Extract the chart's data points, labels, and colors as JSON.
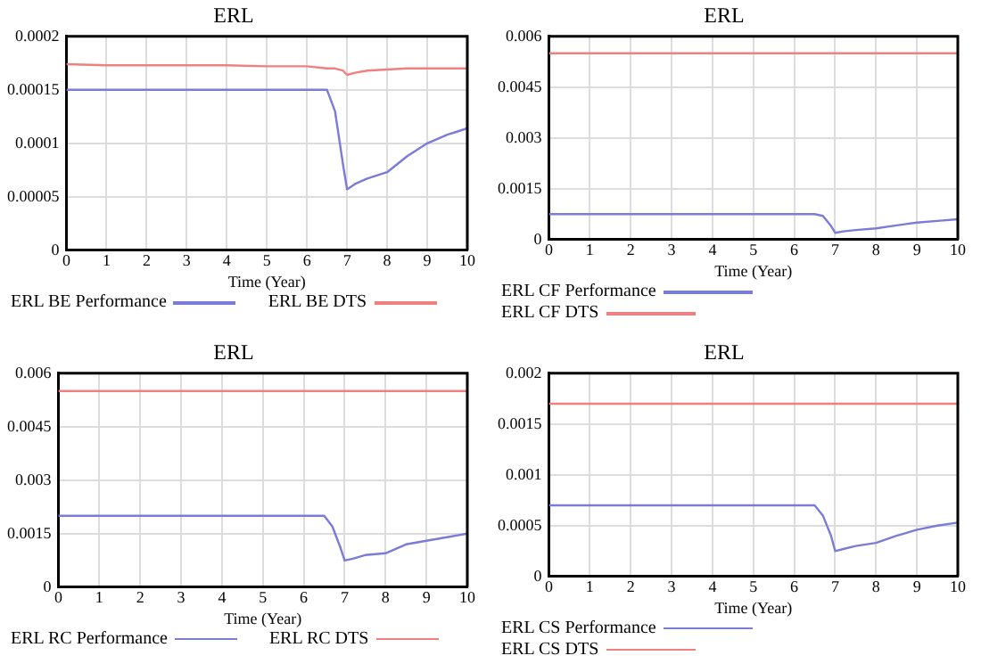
{
  "chart_data": [
    {
      "type": "line",
      "title": "ERL",
      "xlabel": "Time (Year)",
      "x": [
        0,
        1,
        2,
        3,
        4,
        5,
        6,
        6.5,
        6.7,
        6.9,
        7,
        7.2,
        7.5,
        8,
        8.5,
        9,
        9.5,
        10
      ],
      "xlim": [
        0,
        10
      ],
      "xticks": [
        0,
        1,
        2,
        3,
        4,
        5,
        6,
        7,
        8,
        9,
        10
      ],
      "ylim": [
        0,
        0.0002
      ],
      "yticks": [
        0,
        {
          "value": 5e-05,
          "label": "0.00005"
        },
        0.0001,
        0.00015,
        0.0002
      ],
      "grid": true,
      "legend": "bottom",
      "series": [
        {
          "name": "ERL BE Performance",
          "color": "#7b7bd8",
          "values": [
            0.00015,
            0.00015,
            0.00015,
            0.00015,
            0.00015,
            0.00015,
            0.00015,
            0.00015,
            0.00013,
            8e-05,
            5.7e-05,
            6.2e-05,
            6.7e-05,
            7.3e-05,
            8.8e-05,
            0.0001,
            0.000108,
            0.000114
          ]
        },
        {
          "name": "ERL BE DTS",
          "color": "#f08080",
          "values": [
            0.000174,
            0.000173,
            0.000173,
            0.000173,
            0.000173,
            0.000172,
            0.000172,
            0.00017,
            0.00017,
            0.000168,
            0.000164,
            0.000166,
            0.000168,
            0.000169,
            0.00017,
            0.00017,
            0.00017,
            0.00017
          ]
        }
      ]
    },
    {
      "type": "line",
      "title": "ERL",
      "xlabel": "Time (Year)",
      "x": [
        0,
        1,
        2,
        3,
        4,
        5,
        6,
        6.5,
        6.7,
        6.9,
        7,
        7.2,
        7.5,
        8,
        8.5,
        9,
        9.5,
        10
      ],
      "xlim": [
        0,
        10
      ],
      "xticks": [
        0,
        1,
        2,
        3,
        4,
        5,
        6,
        7,
        8,
        9,
        10
      ],
      "ylim": [
        0,
        0.006
      ],
      "yticks": [
        0,
        0.0015,
        0.003,
        0.0045,
        0.006
      ],
      "grid": true,
      "legend": "bottom",
      "series": [
        {
          "name": "ERL CF Performance",
          "color": "#7b7bd8",
          "values": [
            0.00075,
            0.00075,
            0.00075,
            0.00075,
            0.00075,
            0.00075,
            0.00075,
            0.00075,
            0.0007,
            0.0004,
            0.0002,
            0.00024,
            0.00028,
            0.00033,
            0.00042,
            0.0005,
            0.00055,
            0.0006
          ]
        },
        {
          "name": "ERL CF DTS",
          "color": "#f08080",
          "values": [
            0.0055,
            0.0055,
            0.0055,
            0.0055,
            0.0055,
            0.0055,
            0.0055,
            0.0055,
            0.0055,
            0.0055,
            0.0055,
            0.0055,
            0.0055,
            0.0055,
            0.0055,
            0.0055,
            0.0055,
            0.0055
          ]
        }
      ]
    },
    {
      "type": "line",
      "title": "ERL",
      "xlabel": "Time (Year)",
      "x": [
        0,
        1,
        2,
        3,
        4,
        5,
        6,
        6.5,
        6.7,
        6.9,
        7,
        7.2,
        7.5,
        8,
        8.5,
        9,
        9.5,
        10
      ],
      "xlim": [
        0,
        10
      ],
      "xticks": [
        0,
        1,
        2,
        3,
        4,
        5,
        6,
        7,
        8,
        9,
        10
      ],
      "ylim": [
        0,
        0.006
      ],
      "yticks": [
        0,
        0.0015,
        0.003,
        0.0045,
        0.006
      ],
      "grid": true,
      "legend": "bottom",
      "series": [
        {
          "name": "ERL RC Performance",
          "color": "#7b7bd8",
          "values": [
            0.002,
            0.002,
            0.002,
            0.002,
            0.002,
            0.002,
            0.002,
            0.002,
            0.0017,
            0.0011,
            0.00075,
            0.0008,
            0.0009,
            0.00095,
            0.0012,
            0.0013,
            0.0014,
            0.0015
          ]
        },
        {
          "name": "ERL RC DTS",
          "color": "#f08080",
          "values": [
            0.0055,
            0.0055,
            0.0055,
            0.0055,
            0.0055,
            0.0055,
            0.0055,
            0.0055,
            0.0055,
            0.0055,
            0.0055,
            0.0055,
            0.0055,
            0.0055,
            0.0055,
            0.0055,
            0.0055,
            0.0055
          ]
        }
      ]
    },
    {
      "type": "line",
      "title": "ERL",
      "xlabel": "Time (Year)",
      "x": [
        0,
        1,
        2,
        3,
        4,
        5,
        6,
        6.5,
        6.7,
        6.9,
        7,
        7.2,
        7.5,
        8,
        8.5,
        9,
        9.5,
        10
      ],
      "xlim": [
        0,
        10
      ],
      "xticks": [
        0,
        1,
        2,
        3,
        4,
        5,
        6,
        7,
        8,
        9,
        10
      ],
      "ylim": [
        0,
        0.002
      ],
      "yticks": [
        0,
        0.0005,
        0.001,
        0.0015,
        0.002
      ],
      "grid": true,
      "legend": "bottom",
      "series": [
        {
          "name": "ERL CS Performance",
          "color": "#7b7bd8",
          "values": [
            0.0007,
            0.0007,
            0.0007,
            0.0007,
            0.0007,
            0.0007,
            0.0007,
            0.0007,
            0.0006,
            0.0004,
            0.00025,
            0.00027,
            0.0003,
            0.00033,
            0.0004,
            0.00046,
            0.0005,
            0.00053
          ]
        },
        {
          "name": "ERL CS DTS",
          "color": "#f08080",
          "values": [
            0.0017,
            0.0017,
            0.0017,
            0.0017,
            0.0017,
            0.0017,
            0.0017,
            0.0017,
            0.0017,
            0.0017,
            0.0017,
            0.0017,
            0.0017,
            0.0017,
            0.0017,
            0.0017,
            0.0017,
            0.0017
          ]
        }
      ]
    }
  ]
}
